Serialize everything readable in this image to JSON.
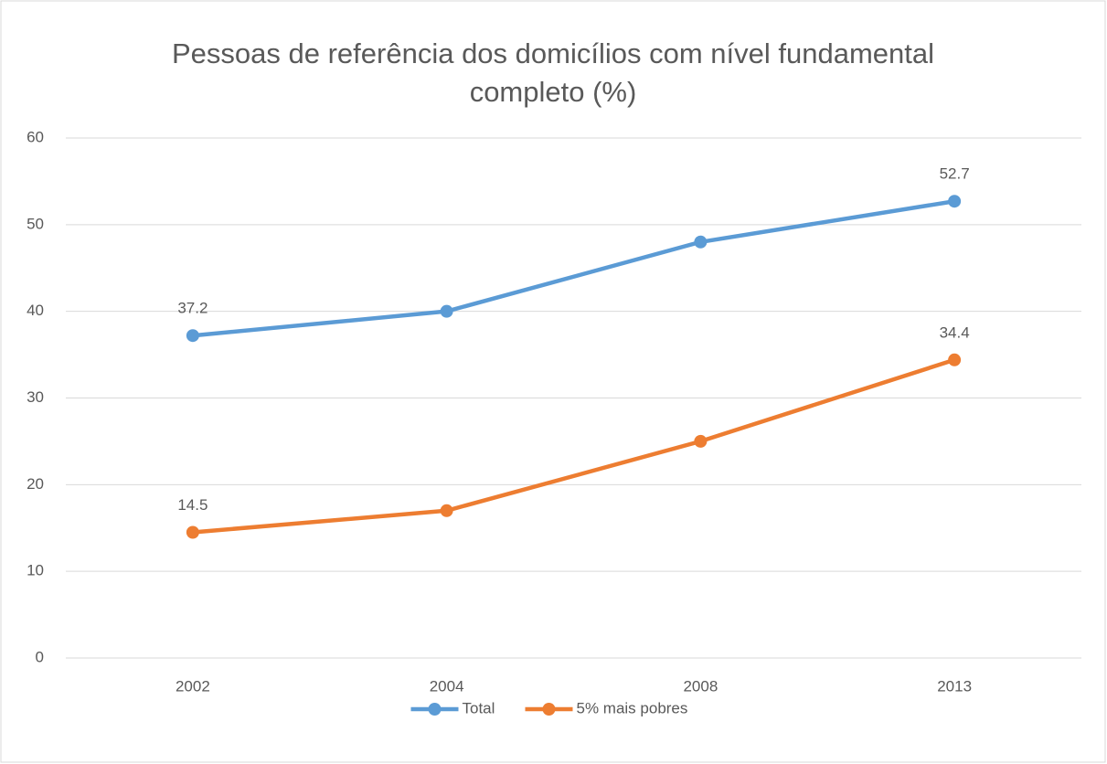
{
  "chart_data": {
    "type": "line",
    "title": "Pessoas de referência dos domicílios com nível fundamental completo (%)",
    "categories": [
      "2002",
      "2004",
      "2008",
      "2013"
    ],
    "series": [
      {
        "name": "Total",
        "color": "#5b9bd5",
        "values": [
          37.2,
          40,
          48,
          52.7
        ],
        "value_labels": [
          "37.2",
          null,
          null,
          "52.7"
        ]
      },
      {
        "name": "5% mais pobres",
        "color": "#ed7d31",
        "values": [
          14.5,
          17,
          25,
          34.4
        ],
        "value_labels": [
          "14.5",
          null,
          null,
          "34.4"
        ]
      }
    ],
    "ylim": [
      0,
      60
    ],
    "yticks": [
      0,
      10,
      20,
      30,
      40,
      50,
      60
    ],
    "grid": true,
    "legend": "bottom"
  }
}
